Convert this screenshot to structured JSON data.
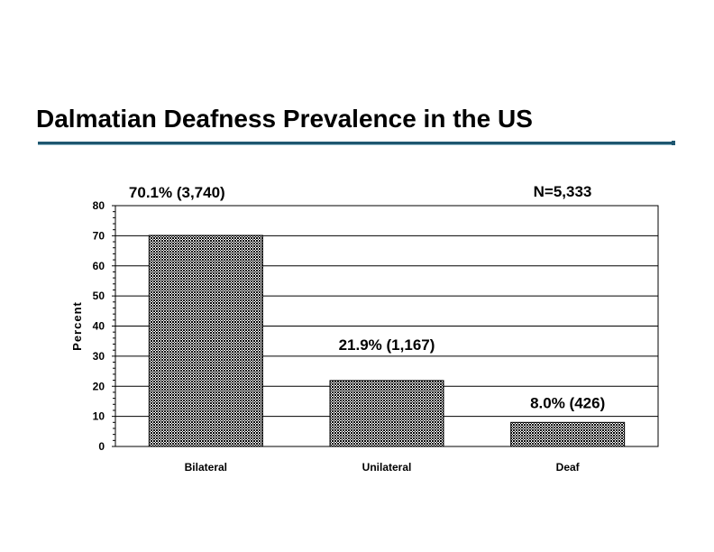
{
  "slide": {
    "title": "Dalmatian Deafness Prevalence in the US",
    "accent_color": "#1e5670"
  },
  "chart_data": {
    "type": "bar",
    "title": "Dalmatian Deafness Prevalence in the US",
    "categories": [
      "Bilateral",
      "Unilateral",
      "Deaf"
    ],
    "values": [
      70.1,
      21.9,
      8.0
    ],
    "data_labels": [
      "70.1% (3,740)",
      "21.9% (1,167)",
      "8.0% (426)"
    ],
    "annotation": "N=5,333",
    "xlabel": "",
    "ylabel": "Percent",
    "ylim": [
      0,
      80
    ],
    "yticks": [
      0,
      10,
      20,
      30,
      40,
      50,
      60,
      70,
      80
    ],
    "grid": true,
    "bar_fill": "dithered black"
  }
}
